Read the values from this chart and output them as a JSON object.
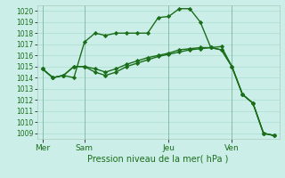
{
  "title": "",
  "xlabel": "Pression niveau de la mer( hPa )",
  "ylim": [
    1008.5,
    1020.5
  ],
  "yticks": [
    1009,
    1010,
    1011,
    1012,
    1013,
    1014,
    1015,
    1016,
    1017,
    1018,
    1019,
    1020
  ],
  "bg_color": "#cceee8",
  "grid_color": "#aaddcc",
  "line_color": "#1a6e1a",
  "day_labels": [
    "Mer",
    "Sam",
    "Jeu",
    "Ven"
  ],
  "day_positions": [
    0,
    4,
    12,
    18
  ],
  "xlim": [
    -0.5,
    22.5
  ],
  "series1": [
    1014.8,
    1014.0,
    1014.2,
    1014.0,
    1017.2,
    1018.0,
    1017.8,
    1018.0,
    1018.0,
    1018.0,
    1018.0,
    1019.4,
    1019.5,
    1020.2,
    1020.2,
    1019.0,
    1016.7,
    1016.8,
    1015.0,
    1012.5,
    1011.7,
    1009.0,
    1008.8
  ],
  "series2": [
    1014.8,
    1014.0,
    1014.2,
    1015.0,
    1015.0,
    1014.8,
    1014.5,
    1014.8,
    1015.2,
    1015.5,
    1015.8,
    1016.0,
    1016.2,
    1016.5,
    1016.6,
    1016.7,
    1016.7,
    1016.5,
    1015.0,
    1012.5,
    1011.7,
    1009.0,
    1008.8
  ],
  "series3": [
    1014.8,
    1014.0,
    1014.2,
    1015.0,
    1015.0,
    1014.5,
    1014.2,
    1014.5,
    1015.0,
    1015.3,
    1015.6,
    1015.9,
    1016.1,
    1016.3,
    1016.5,
    1016.6,
    1016.7,
    1016.5,
    1015.0,
    1012.5,
    1011.7,
    1009.0,
    1008.8
  ],
  "marker": "D",
  "marker_size": 2.2,
  "line_width": 1.0,
  "ylabel_fontsize": 5.5,
  "xlabel_fontsize": 7.0,
  "xtick_fontsize": 6.5
}
